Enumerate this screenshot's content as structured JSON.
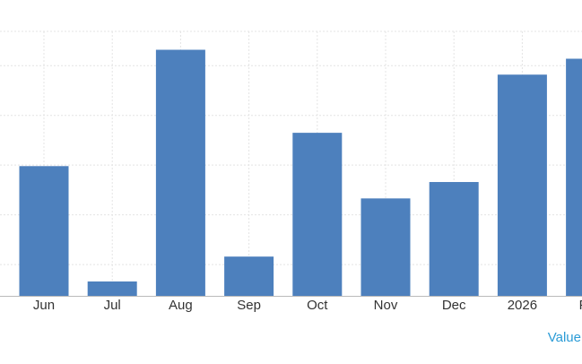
{
  "chart_data": {
    "type": "bar",
    "categories": [
      "Jun",
      "Jul",
      "Aug",
      "Sep",
      "Oct",
      "Nov",
      "Dec",
      "2026",
      "Feb"
    ],
    "values": [
      26.1,
      2.9,
      49.5,
      7.9,
      32.8,
      19.6,
      22.9,
      44.5,
      47.7
    ],
    "color": "#4d80bd",
    "ylim": [
      0,
      53.2
    ],
    "yticks": [
      6.3,
      16.3,
      26.3,
      36.3,
      46.3,
      53.2
    ],
    "grid": true,
    "link_label": "Value"
  }
}
